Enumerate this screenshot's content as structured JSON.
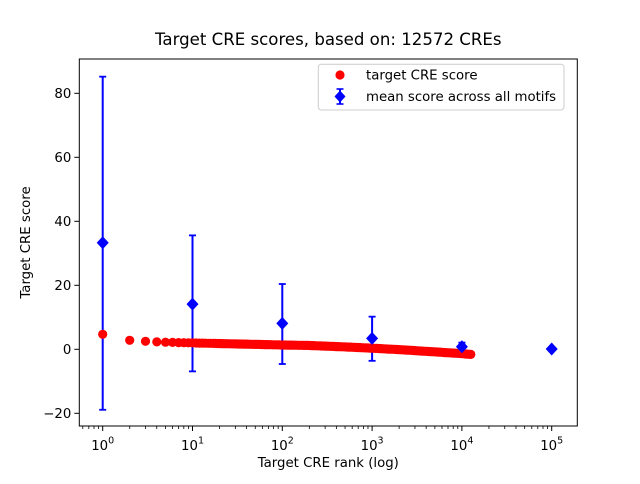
{
  "title": "Target CRE scores, based on: 12572 CREs",
  "axes": {
    "xlabel": "Target CRE rank (log)",
    "ylabel": "Target CRE score"
  },
  "legend": {
    "position": "upper right",
    "entries": [
      {
        "label": "target CRE score",
        "marker": "circle",
        "color": "#ff0000"
      },
      {
        "label": "mean score across all motifs",
        "marker": "diamond-errorbar",
        "color": "#0000ff"
      }
    ]
  },
  "chart_data": {
    "type": "scatter",
    "title": "Target CRE scores, based on: 12572 CREs",
    "xlabel": "Target CRE rank (log)",
    "ylabel": "Target CRE score",
    "x_scale": "log",
    "grid": false,
    "legend_position": "upper right",
    "n_cres": 12572,
    "x_ticks": [
      {
        "base": "10",
        "exp": "0"
      },
      {
        "base": "10",
        "exp": "1"
      },
      {
        "base": "10",
        "exp": "2"
      },
      {
        "base": "10",
        "exp": "3"
      },
      {
        "base": "10",
        "exp": "4"
      },
      {
        "base": "10",
        "exp": "5"
      }
    ],
    "y_ticks": [
      -20,
      0,
      20,
      40,
      60,
      80
    ],
    "y_tick_labels": [
      "−20",
      "0",
      "20",
      "40",
      "60",
      "80"
    ],
    "xlim_log10": [
      -0.2606,
      5.2851
    ],
    "ylim": [
      -23.97,
      90.72
    ],
    "series": [
      {
        "name": "target CRE score",
        "color": "#ff0000",
        "marker": "circle",
        "marker_px": 9,
        "rank_range": [
          1,
          12572
        ],
        "curve_anchors_rank_score": [
          [
            1,
            4.7
          ],
          [
            2,
            2.8
          ],
          [
            3,
            2.5
          ],
          [
            4,
            2.3
          ],
          [
            6,
            2.15
          ],
          [
            10,
            2.0
          ],
          [
            20,
            1.8
          ],
          [
            50,
            1.55
          ],
          [
            100,
            1.35
          ],
          [
            200,
            1.2
          ],
          [
            500,
            0.75
          ],
          [
            1000,
            0.35
          ],
          [
            2000,
            -0.1
          ],
          [
            5000,
            -0.8
          ],
          [
            10000,
            -1.35
          ],
          [
            12572,
            -1.6
          ]
        ]
      },
      {
        "name": "mean score across all motifs",
        "color": "#0000ff",
        "marker": "diamond",
        "points": [
          {
            "rank": 1,
            "mean": 33.3,
            "err_lo": -18.9,
            "err_hi": 85.2
          },
          {
            "rank": 10,
            "mean": 14.1,
            "err_lo": -6.9,
            "err_hi": 35.6
          },
          {
            "rank": 100,
            "mean": 8.1,
            "err_lo": -4.6,
            "err_hi": 20.4
          },
          {
            "rank": 1000,
            "mean": 3.4,
            "err_lo": -3.6,
            "err_hi": 10.2
          },
          {
            "rank": 10000,
            "mean": 0.8,
            "err_lo": -0.5,
            "err_hi": 2.1
          },
          {
            "rank": 100000,
            "mean": 0.1,
            "err_lo": -0.4,
            "err_hi": 0.6
          }
        ]
      }
    ]
  }
}
